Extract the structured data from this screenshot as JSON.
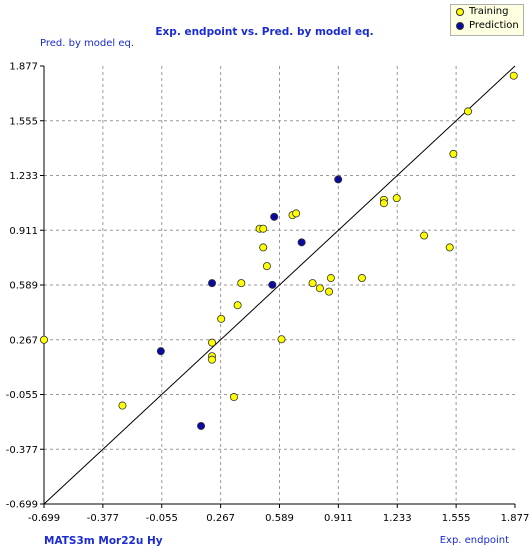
{
  "chart_data": {
    "type": "scatter",
    "title": "Exp. endpoint vs. Pred. by model eq.",
    "ylabel": "Pred. by model eq.",
    "xlabel": "Exp. endpoint",
    "descriptors": "MATS3m  Mor22u  Hy",
    "xlim": [
      -0.699,
      1.877
    ],
    "ylim": [
      -0.699,
      1.877
    ],
    "ticks": [
      "-0.699",
      "-0.377",
      "-0.055",
      "0.267",
      "0.589",
      "0.911",
      "1.233",
      "1.555",
      "1.877"
    ],
    "tick_values": [
      -0.699,
      -0.377,
      -0.055,
      0.267,
      0.589,
      0.911,
      1.233,
      1.555,
      1.877
    ],
    "grid": true,
    "legend_position": "top-right",
    "diagonal_line": true,
    "series": [
      {
        "name": "Training",
        "color": "#ffff00",
        "points": [
          [
            -0.699,
            0.267
          ],
          [
            -0.27,
            -0.12
          ],
          [
            0.22,
            0.25
          ],
          [
            0.22,
            0.17
          ],
          [
            0.22,
            0.15
          ],
          [
            0.27,
            0.39
          ],
          [
            0.34,
            -0.07
          ],
          [
            0.36,
            0.47
          ],
          [
            0.38,
            0.6
          ],
          [
            0.48,
            0.92
          ],
          [
            0.5,
            0.92
          ],
          [
            0.5,
            0.81
          ],
          [
            0.52,
            0.7
          ],
          [
            0.6,
            0.27
          ],
          [
            0.66,
            1.0
          ],
          [
            0.68,
            1.01
          ],
          [
            0.77,
            0.6
          ],
          [
            0.81,
            0.57
          ],
          [
            0.86,
            0.55
          ],
          [
            0.87,
            0.63
          ],
          [
            1.04,
            0.63
          ],
          [
            1.16,
            1.09
          ],
          [
            1.16,
            1.07
          ],
          [
            1.23,
            1.1
          ],
          [
            1.38,
            0.88
          ],
          [
            1.52,
            0.81
          ],
          [
            1.54,
            1.36
          ],
          [
            1.62,
            1.61
          ],
          [
            1.87,
            1.82
          ]
        ]
      },
      {
        "name": "Prediction",
        "color": "#0a0aa0",
        "points": [
          [
            -0.06,
            0.2
          ],
          [
            0.16,
            -0.24
          ],
          [
            0.22,
            0.6
          ],
          [
            0.55,
            0.59
          ],
          [
            0.56,
            0.99
          ],
          [
            0.71,
            0.84
          ],
          [
            0.91,
            1.21
          ]
        ]
      }
    ]
  }
}
